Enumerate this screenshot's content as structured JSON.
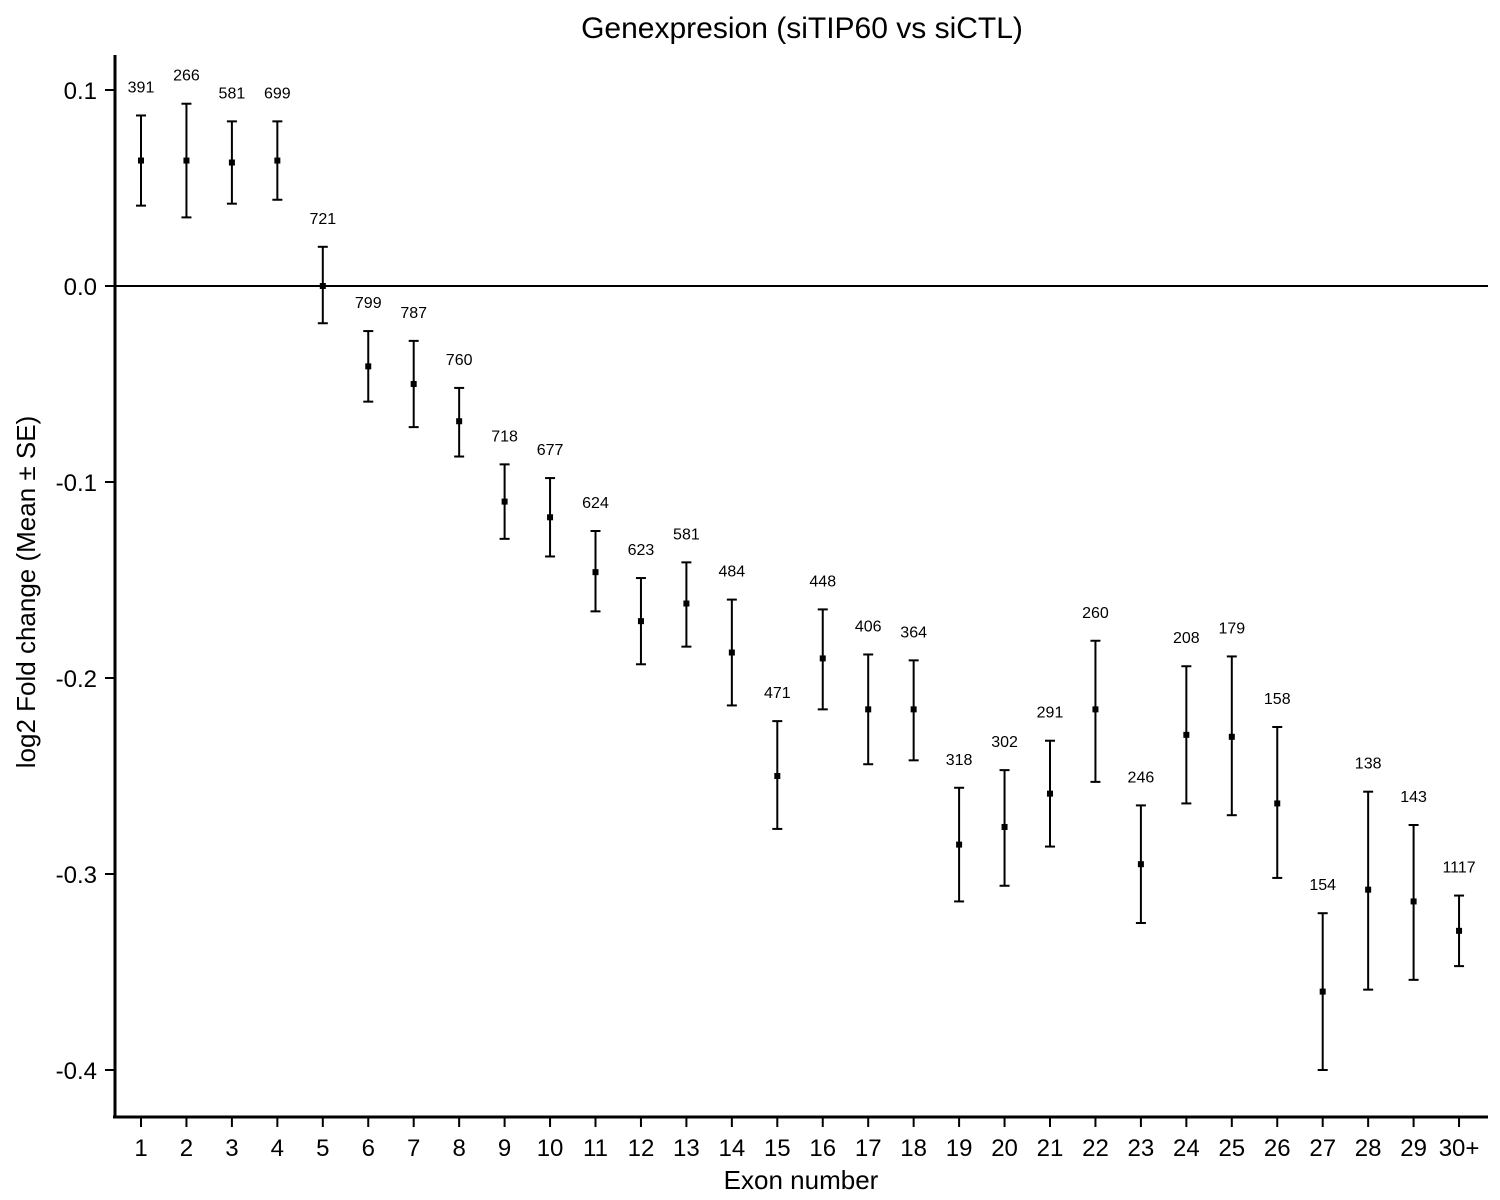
{
  "chart_data": {
    "type": "scatter",
    "title": "Genexpresion (siTIP60 vs siCTL)",
    "xlabel": "Exon number",
    "ylabel": "log2 Fold change (Mean ± SE)",
    "ylim": [
      -0.42,
      0.12
    ],
    "yticks": [
      0.1,
      0.0,
      -0.1,
      -0.2,
      -0.3,
      -0.4
    ],
    "ytick_labels": [
      "0.1",
      "0.0",
      "-0.1",
      "-0.2",
      "-0.3",
      "-0.4"
    ],
    "reference_line_y": 0.0,
    "grid": false,
    "categories": [
      "1",
      "2",
      "3",
      "4",
      "5",
      "6",
      "7",
      "8",
      "9",
      "10",
      "11",
      "12",
      "13",
      "14",
      "15",
      "16",
      "17",
      "18",
      "19",
      "20",
      "21",
      "22",
      "23",
      "24",
      "25",
      "26",
      "27",
      "28",
      "29",
      "30+"
    ],
    "mean": [
      0.064,
      0.064,
      0.063,
      0.064,
      0.0,
      -0.041,
      -0.05,
      -0.069,
      -0.11,
      -0.118,
      -0.146,
      -0.171,
      -0.162,
      -0.187,
      -0.25,
      -0.19,
      -0.216,
      -0.216,
      -0.285,
      -0.276,
      -0.259,
      -0.216,
      -0.295,
      -0.229,
      -0.23,
      -0.264,
      -0.36,
      -0.308,
      -0.314,
      -0.329
    ],
    "lower": [
      0.041,
      0.035,
      0.042,
      0.044,
      -0.019,
      -0.059,
      -0.072,
      -0.087,
      -0.129,
      -0.138,
      -0.166,
      -0.193,
      -0.184,
      -0.214,
      -0.277,
      -0.216,
      -0.244,
      -0.242,
      -0.314,
      -0.306,
      -0.286,
      -0.253,
      -0.325,
      -0.264,
      -0.27,
      -0.302,
      -0.4,
      -0.359,
      -0.354,
      -0.347
    ],
    "upper": [
      0.087,
      0.093,
      0.084,
      0.084,
      0.02,
      -0.023,
      -0.028,
      -0.052,
      -0.091,
      -0.098,
      -0.125,
      -0.149,
      -0.141,
      -0.16,
      -0.222,
      -0.165,
      -0.188,
      -0.191,
      -0.256,
      -0.247,
      -0.232,
      -0.181,
      -0.265,
      -0.194,
      -0.189,
      -0.225,
      -0.32,
      -0.258,
      -0.275,
      -0.311
    ],
    "counts": [
      "391",
      "266",
      "581",
      "699",
      "721",
      "799",
      "787",
      "760",
      "718",
      "677",
      "624",
      "623",
      "581",
      "484",
      "471",
      "448",
      "406",
      "364",
      "318",
      "302",
      "291",
      "260",
      "246",
      "208",
      "179",
      "158",
      "154",
      "138",
      "143",
      "1117"
    ]
  }
}
